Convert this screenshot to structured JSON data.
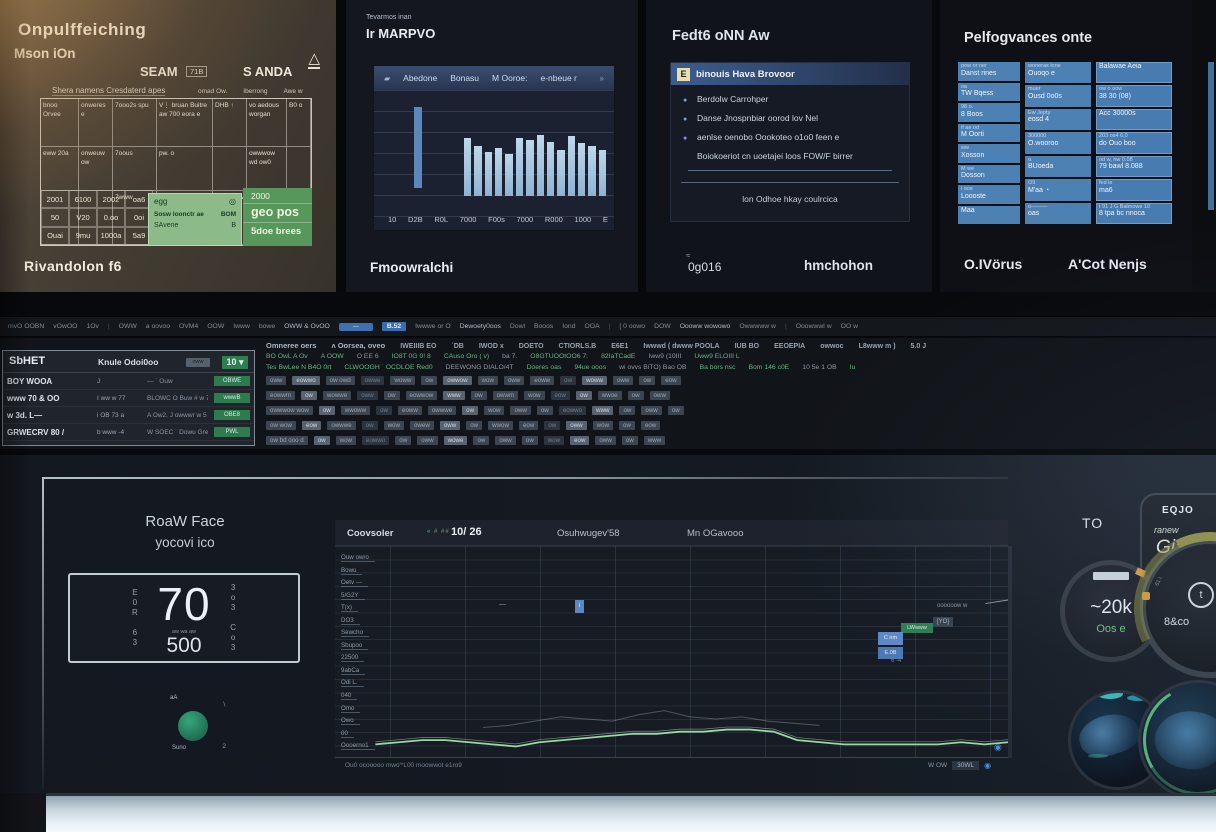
{
  "top": {
    "spreadsheet": {
      "title": "Onpulffeiching",
      "subtitle": "Mson iOn",
      "col_header_1": "SEAM",
      "col_badge": "71B",
      "col_header_2": "S ANDA",
      "tri_icon": "△",
      "caption": "Shera namens Cresdaterd apes",
      "caption_cols": [
        "omad Ow.",
        "Iberrong",
        "Awe w"
      ],
      "grid_rows": {
        "0": [
          "bnoo Orvee",
          "onweres e",
          "7ooo2s spu",
          "V⋮ bruan Buitre aw 700 eora e",
          "DHB ↑",
          "vo aedous worgan",
          "B0 o"
        ],
        "1": [
          "eww 20a",
          "onweuw ow",
          "7oous",
          "pw. o",
          "",
          "owwwow wd ow0",
          ""
        ],
        "2": [
          "",
          "",
          "7www",
          "",
          "oww www",
          "",
          ""
        ]
      },
      "bottom_rows": {
        "0": [
          "2001",
          "6100",
          "2002",
          "oa6"
        ],
        "1": [
          "50",
          "V20",
          "0.oo",
          "0oi"
        ],
        "2": [
          "Ouai",
          "9mu",
          "1000a",
          "5a9"
        ]
      },
      "green_card": {
        "line1": "egg",
        "icon": "◎",
        "line2": "Sosw loonctr ae",
        "line2_badge": "BOM",
        "line3": "SAvene",
        "line3_badge": "B"
      },
      "green_col": [
        "2000",
        "geo pos",
        "5doe brees"
      ],
      "footer": "Rivandolon  f6"
    },
    "bar_panel": {
      "eyebrow": "Tevarmos inan",
      "title": "Ir MARPVO",
      "tab_icon": "▰",
      "tabs": [
        "Abedone",
        "Bonasu",
        "M Ooroe:",
        "e-nbeue r"
      ],
      "scroll_icon": "»",
      "bars": {
        "tall": "58%",
        "values": [
          "60%",
          "52%",
          "46%",
          "50%",
          "44%",
          "60%",
          "58%",
          "64%",
          "56%",
          "48%",
          "62%",
          "55%",
          "52%",
          "48%"
        ]
      },
      "x_labels": [
        "10",
        "D2B",
        "R0L",
        "7000",
        "F00s",
        "7000",
        "R000",
        "1000",
        "E"
      ],
      "footer": "Fmoowralchi"
    },
    "facts_panel": {
      "title": "Fedt6 oNN Aw",
      "header_icon": "E",
      "header": "binouis Hava Brovoor",
      "items": [
        {
          "bullet": "●",
          "text": "Berdolw Carrohper"
        },
        {
          "bullet": "●",
          "text": "Danse Jnospnbiar oorod lov Nel"
        },
        {
          "bullet": "●",
          "text": "aenlse oenobo Oookoteo o1o0 feen e"
        },
        {
          "bullet": "",
          "text": "Boiokoeriot cn uoetajei loos FOW/F birrer"
        }
      ],
      "note": "lon Odhoe hkay coulrcica",
      "footer_left": "0g016",
      "footer_right": "hmchohon"
    },
    "perf_panel": {
      "title": "Pelfogvances onte",
      "columns": {
        "0": {
          "cells": [
            {
              "l1": "pow or ner",
              "l2": "Danst rines"
            },
            {
              "l1": "oa",
              "l2": "TW Bqess"
            },
            {
              "l1": "98 o.",
              "l2": "8 Boos"
            },
            {
              "l1": "if ae od",
              "l2": "M Oorti"
            },
            {
              "l1": "ww",
              "l2": "Xosson"
            },
            {
              "l1": "M we",
              "l2": "Dosson"
            },
            {
              "l1": "i oos",
              "l2": "Loooste"
            },
            {
              "l1": "",
              "l2": "Maa"
            }
          ]
        },
        "1": {
          "cells": [
            {
              "l1": "woneras ione",
              "l2": "Ouoqo e"
            },
            {
              "l1": "muer",
              "l2": "Ousd 0o0s"
            },
            {
              "l1": "Ew Jepty",
              "l2": "eosd 4"
            },
            {
              "l1": "300000",
              "l2": "O.wooroo"
            },
            {
              "l1": "o.",
              "l2": "BUoeda"
            },
            {
              "l1": "O9",
              "l2": "M'aa ◔"
            },
            {
              "l1": "o———",
              "l2": "oas"
            }
          ]
        },
        "2": {
          "cells": [
            {
              "l1": "",
              "l2": "Balawae Aeia"
            },
            {
              "l1": "ow o  oow",
              "l2": "38 30 (08)"
            },
            {
              "l1": "",
              "l2": "Acc 30000s"
            },
            {
              "l1": "203  os4 6.0",
              "l2": "do Ouo boo"
            },
            {
              "l1": "od w, nw 0.08",
              "l2": "79 bawl 8.088"
            },
            {
              "l1": "fed le",
              "l2": "ma6"
            },
            {
              "l1": "t 91 J G  Balmowe 10",
              "l2": "8 tpa bc nnoca"
            }
          ]
        }
      },
      "footer_left": "O.IVörus",
      "footer_right": "A'Cot Nenjs"
    }
  },
  "terminal": {
    "menubar": [
      {
        "label": "mvO OOBN",
        "cls": "t"
      },
      {
        "label": "vOwOO",
        "cls": "t"
      },
      {
        "label": "1Ov",
        "cls": "t"
      },
      {
        "label": "|",
        "cls": "sep"
      },
      {
        "label": "OWW",
        "cls": "t"
      },
      {
        "label": "a oovoo",
        "cls": "t"
      },
      {
        "label": "OVM4",
        "cls": "t"
      },
      {
        "label": "OOW",
        "cls": "t"
      },
      {
        "label": "Iwww",
        "cls": "t"
      },
      {
        "label": "bowe",
        "cls": "t"
      },
      {
        "label": "OWW & OvOO",
        "cls": "strong"
      },
      {
        "label": "—",
        "cls": "btn"
      },
      {
        "label": "B.52",
        "cls": "badge"
      },
      {
        "label": "Iwwwe or O",
        "cls": "t"
      },
      {
        "label": "Dewoety0oos",
        "cls": "strong"
      },
      {
        "label": "Dowl",
        "cls": "t"
      },
      {
        "label": "Booos",
        "cls": "t"
      },
      {
        "label": "Iond",
        "cls": "t"
      },
      {
        "label": "OOA",
        "cls": "t"
      },
      {
        "label": "|",
        "cls": "sep"
      },
      {
        "label": "[ 0 oowo",
        "cls": "t"
      },
      {
        "label": "DOW",
        "cls": "t"
      },
      {
        "label": "Oooww wowowo",
        "cls": "strong"
      },
      {
        "label": "Owwwww w",
        "cls": "t"
      },
      {
        "label": "|",
        "cls": "sep"
      },
      {
        "label": "Ooowwwl w",
        "cls": "t"
      },
      {
        "label": "OO w",
        "cls": "t"
      }
    ],
    "left": {
      "header": "SbHET",
      "header_mid": "Knule Odoi0oo",
      "header_pill": "oww",
      "header_badge": "10 ▾",
      "rows": [
        {
          "name": "BOY WOOA",
          "mid": "J",
          "vals": "— ˙ Ouw",
          "badge": "OBWE"
        },
        {
          "name": "www 70 & OO",
          "mid": "I ww w 77",
          "vals": "BLOWC O Buw  # w 7%",
          "badge": "wwwB"
        },
        {
          "name": "w  3d. L—",
          "mid": "i OB 73 a",
          "vals": "A Ow2.  J  owwwr w 5",
          "badge": "OBE8"
        },
        {
          "name": "GRWECRV 80 /",
          "mid": "b www -4",
          "vals": "W SOEC ˙ Dowu Greomnrl e OAQW",
          "badge": "PWL"
        }
      ]
    },
    "right": {
      "heads": [
        "Omneree oers",
        "ʌ Oorsea, oveo",
        "IWEIIIB EO",
        "˙DB",
        "IWOD x",
        "DOETO",
        "CTIORLS.B",
        "E6E1",
        "Iwwwd ( dwww POOLA",
        "IUB BO",
        "EEOEPIA",
        "owwoc",
        "L8www m )",
        "5.0 J"
      ],
      "green_rows": {
        "0": [
          "BO OwL A Ov",
          "A OOW",
          "O EE 6",
          "IO8T 0G 0! 8",
          "CAuso Oro ( v)",
          "ba 7.",
          "O8GTUOOtOO6 7:",
          "82IaTCadE",
          "Iww9 (10III",
          "Uww9 ELOIII L"
        ],
        "1": [
          "Tes BwLee N B4O 0rt",
          "CLWOOGH ˙ OCDLOE Red0",
          "DEEWONG DIALO/4T",
          "Doeres oas",
          "94ue ooos",
          "wi ovvs BiTO) Bao OB",
          "Ba bors nsc",
          "Bom 146 c0E",
          "10 5e 1 OB",
          "Iu"
        ]
      },
      "pill_rows": {
        "0": [
          "oww",
          "eowwo",
          "ow owd",
          "owwe",
          "woww",
          "ow",
          "owwow",
          "wow",
          "oww",
          "eoww",
          "ow",
          "woww",
          "oww",
          "ow",
          "eow"
        ],
        "1": [
          "eowwm",
          "ow",
          "wowwe",
          "oww",
          "ow",
          "eowwow",
          "www",
          "ow",
          "owwm",
          "wow",
          "eow",
          "ow",
          "wwoe",
          "ow",
          "oww"
        ],
        "2": [
          "owwwow wow",
          "ow",
          "wwoww",
          "ow",
          "eoww",
          "owwwe",
          "ow",
          "wow",
          "oww",
          "ow",
          "eowwo",
          "www",
          "ow",
          "oww",
          "ow"
        ],
        "3": [
          "ow wow",
          "eow",
          "owwwe",
          "ow",
          "wow",
          "owew",
          "oww",
          "ow",
          "wwow",
          "eow",
          "ow",
          "oww",
          "wow",
          "ow",
          "eow"
        ],
        "4": [
          "ow bd ooo d",
          "ow",
          "wow",
          "eowwo",
          "ow",
          "oww",
          "wowe",
          "ow",
          "oww",
          "ow",
          "wow",
          "eow",
          "oww",
          "ow",
          "www"
        ]
      }
    }
  },
  "dash": {
    "gauge_left": {
      "title": "RoaW Face",
      "subtitle": "yocovi ico",
      "side_left": "E0R 63",
      "value": "70",
      "sub_small": "aw wa aw",
      "sub": "500",
      "side_right": "3o3 Co3",
      "dot_tl": "aA",
      "dot_tr": "∖",
      "dot_bl": "Suno",
      "dot_br": "2"
    },
    "chart": {
      "header_left": "Coovsoler",
      "header_badges": "« # ##",
      "header_value": "10/ 26",
      "header_mid": "Osuhwugev'58",
      "header_right": "Mn OGavooo",
      "y_labels": [
        "Ouw owro",
        "Bowu",
        "Oetv —",
        "5/G2Y",
        "T(x)",
        "DO3",
        "Sewcho",
        "Sbupoo",
        "22500",
        "9abCa",
        "Odi L.",
        "040",
        "Omo",
        "Owo",
        "00",
        "Oooerno1"
      ],
      "line_points": [
        6,
        7,
        8,
        8,
        7,
        6,
        5,
        7,
        8,
        9,
        10,
        11,
        11,
        12,
        12,
        13,
        13,
        12,
        8,
        7,
        6,
        6,
        6,
        6,
        6,
        7,
        6,
        7
      ],
      "ghost_points": [
        14,
        15,
        17,
        19,
        18,
        17,
        20,
        22,
        19,
        18,
        19,
        17,
        16,
        15
      ],
      "ann_chip1": "C nm",
      "ann_chip2": "E.0B",
      "ann_green": "LWwww",
      "ann_ybox": "[YO]",
      "ann_callout": "oooooow w",
      "ann_tick": "6 -4",
      "ann_ibox": "i",
      "ann_dash": "—",
      "end_dot": "◉",
      "footer_left": "Ou0 ocooooo mwo'*L00 moowwot e1ro9",
      "footer_right": "W OW",
      "footer_pill": "30WL",
      "footer_icon": "◉"
    },
    "gauges_right": {
      "label": "TO",
      "card_title": "EQJO",
      "card_script1": "ranew",
      "card_script2": "Gia",
      "g1_value": "~20k",
      "g1_sub": "Oos e",
      "g2_icon": "t",
      "g2_label": "8&co",
      "g2_side": "61 i."
    }
  }
}
